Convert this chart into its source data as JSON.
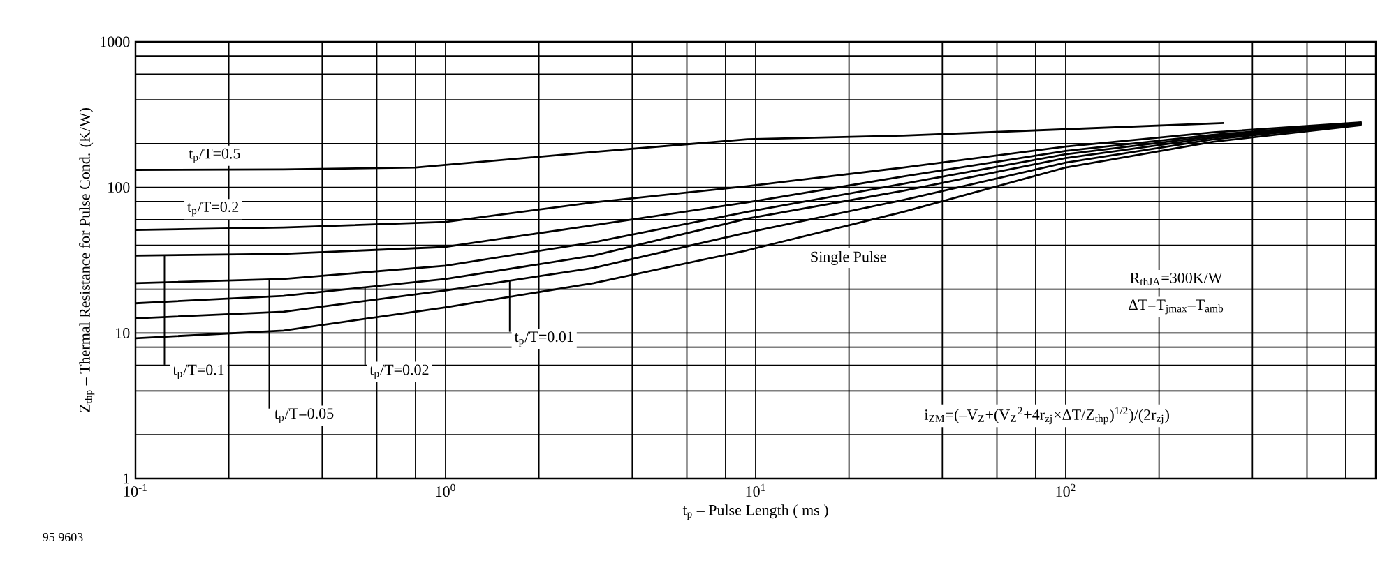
{
  "chart_data": {
    "type": "line",
    "xlabel": "t$_{p}$ – Pulse Length ( ms )",
    "ylabel": "Z$_{thp}$ – Thermal Resistance for Pulse Cond. (K/W)",
    "log": "xy",
    "grid": true,
    "xlim": [
      0.1,
      1000
    ],
    "ylim": [
      1,
      1000
    ],
    "xticks": [
      {
        "value": 0.1,
        "label": "10$^{-1}$"
      },
      {
        "value": 0.2,
        "label": null
      },
      {
        "value": 0.4,
        "label": null
      },
      {
        "value": 0.6,
        "label": null
      },
      {
        "value": 0.8,
        "label": null
      },
      {
        "value": 1,
        "label": "10$^{0}$"
      },
      {
        "value": 2,
        "label": null
      },
      {
        "value": 4,
        "label": null
      },
      {
        "value": 6,
        "label": null
      },
      {
        "value": 8,
        "label": null
      },
      {
        "value": 10,
        "label": "10$^{1}$"
      },
      {
        "value": 20,
        "label": null
      },
      {
        "value": 40,
        "label": null
      },
      {
        "value": 60,
        "label": null
      },
      {
        "value": 80,
        "label": null
      },
      {
        "value": 100,
        "label": "10$^{2}$"
      },
      {
        "value": 200,
        "label": null
      },
      {
        "value": 400,
        "label": null
      },
      {
        "value": 600,
        "label": null
      },
      {
        "value": 800,
        "label": null
      }
    ],
    "yticks": [
      1,
      {
        "value": 2,
        "label": null
      },
      {
        "value": 4,
        "label": null
      },
      {
        "value": 6,
        "label": null
      },
      {
        "value": 8,
        "label": null
      },
      10,
      {
        "value": 20,
        "label": null
      },
      {
        "value": 40,
        "label": null
      },
      {
        "value": 60,
        "label": null
      },
      {
        "value": 80,
        "label": null
      },
      100,
      {
        "value": 200,
        "label": null
      },
      {
        "value": 400,
        "label": null
      },
      {
        "value": 600,
        "label": null
      },
      {
        "value": 800,
        "label": null
      },
      1000
    ],
    "x": [
      0.1,
      0.3,
      1,
      3,
      9.4,
      30,
      100,
      300,
      900
    ],
    "series": [
      {
        "name": "t$_{p}$/T=0.5",
        "color": "#000000",
        "x": [
          0.1,
          0.3,
          0.8,
          3,
          9.4,
          30,
          100,
          324
        ],
        "values": [
          132,
          133,
          137,
          175,
          214,
          227,
          251,
          277
        ]
      },
      {
        "name": "t$_{p}$/T=0.2",
        "color": "#000000",
        "values": [
          51,
          53,
          58,
          79,
          102,
          137,
          191,
          239,
          280
        ]
      },
      {
        "name": "t$_{p}$/T=0.1",
        "color": "#000000",
        "values": [
          34,
          35,
          39,
          55,
          79,
          119,
          178,
          230,
          278
        ]
      },
      {
        "name": "t$_{p}$/T=0.05",
        "color": "#000000",
        "values": [
          22,
          23.5,
          29,
          42,
          68,
          106,
          169,
          225,
          276
        ]
      },
      {
        "name": "t$_{p}$/T=0.02",
        "color": "#000000",
        "values": [
          16,
          18,
          23.5,
          34,
          61,
          95,
          159,
          220,
          274
        ]
      },
      {
        "name": "t$_{p}$/T=0.01",
        "color": "#000000",
        "values": [
          12.6,
          14,
          19.6,
          28,
          49,
          82,
          148,
          214,
          272
        ]
      },
      {
        "name": "Single Pulse",
        "color": "#000000",
        "values": [
          9.2,
          10.4,
          15,
          22,
          37,
          68,
          137,
          206,
          268
        ]
      }
    ],
    "annotations": [
      "R$_{thJA}$=300K/W",
      "ΔT=T$_{jmax}$–T$_{amb}$",
      "i$_{ZM}$=(–V$_{Z}$+(V$_{Z}$$^{2}$+4r$_{zj}$×ΔT/Z$_{thp}$)$^{1/2}$)/(2r$_{zj}$)",
      "95 9603"
    ]
  }
}
